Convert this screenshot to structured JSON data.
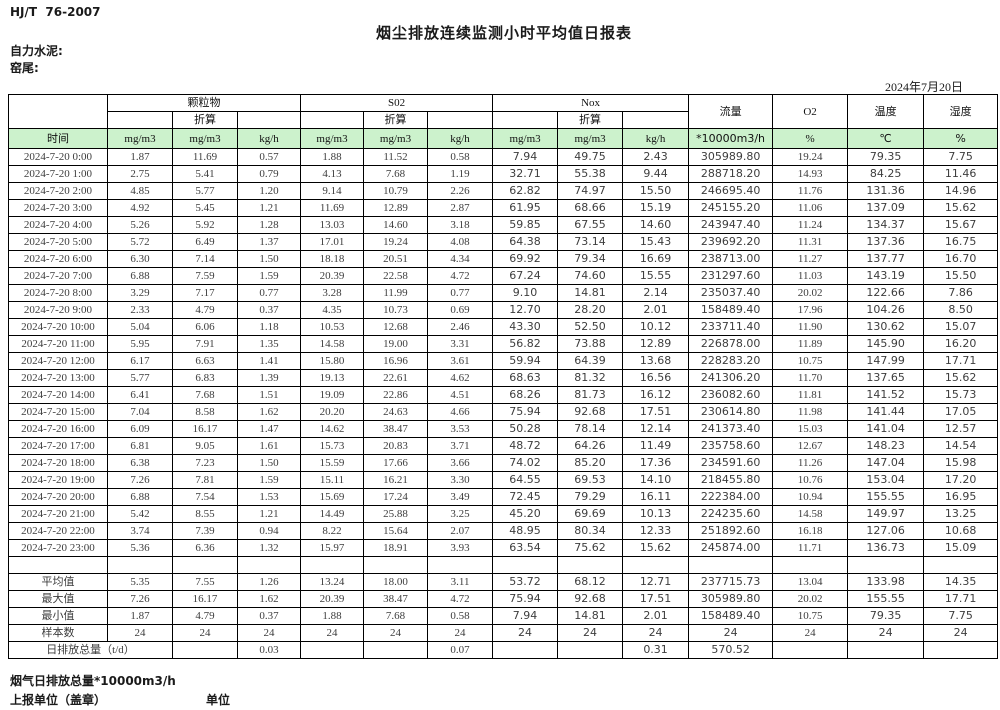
{
  "page": {
    "standard": "HJ/T  76-2007",
    "title": "烟尘排放连续监测小时平均值日报表",
    "company": "自力水泥:",
    "location": "窑尾:",
    "date": "2024年7月20日"
  },
  "colors": {
    "header_green": "#ccf2cc",
    "border": "#000000"
  },
  "table": {
    "group_labels": [
      "颗粒物",
      "S02",
      "Nox"
    ],
    "zhesuan": "折算",
    "side_labels": {
      "flow": "流量",
      "o2": "O2",
      "temp": "温度",
      "hum": "湿度"
    },
    "units": [
      "时间",
      "mg/m3",
      "mg/m3",
      "kg/h",
      "mg/m3",
      "mg/m3",
      "kg/h",
      "mg/m3",
      "mg/m3",
      "kg/h",
      "*10000m3/h",
      "%",
      "℃",
      "%"
    ],
    "rows": [
      [
        "2024-7-20 0:00",
        "1.87",
        "11.69",
        "0.57",
        "1.88",
        "11.52",
        "0.58",
        "7.94",
        "49.75",
        "2.43",
        "305989.80",
        "19.24",
        "79.35",
        "7.75"
      ],
      [
        "2024-7-20 1:00",
        "2.75",
        "5.41",
        "0.79",
        "4.13",
        "7.68",
        "1.19",
        "32.71",
        "55.38",
        "9.44",
        "288718.20",
        "14.93",
        "84.25",
        "11.46"
      ],
      [
        "2024-7-20 2:00",
        "4.85",
        "5.77",
        "1.20",
        "9.14",
        "10.79",
        "2.26",
        "62.82",
        "74.97",
        "15.50",
        "246695.40",
        "11.76",
        "131.36",
        "14.96"
      ],
      [
        "2024-7-20 3:00",
        "4.92",
        "5.45",
        "1.21",
        "11.69",
        "12.89",
        "2.87",
        "61.95",
        "68.66",
        "15.19",
        "245155.20",
        "11.06",
        "137.09",
        "15.62"
      ],
      [
        "2024-7-20 4:00",
        "5.26",
        "5.92",
        "1.28",
        "13.03",
        "14.60",
        "3.18",
        "59.85",
        "67.55",
        "14.60",
        "243947.40",
        "11.24",
        "134.37",
        "15.67"
      ],
      [
        "2024-7-20 5:00",
        "5.72",
        "6.49",
        "1.37",
        "17.01",
        "19.24",
        "4.08",
        "64.38",
        "73.14",
        "15.43",
        "239692.20",
        "11.31",
        "137.36",
        "16.75"
      ],
      [
        "2024-7-20 6:00",
        "6.30",
        "7.14",
        "1.50",
        "18.18",
        "20.51",
        "4.34",
        "69.92",
        "79.34",
        "16.69",
        "238713.00",
        "11.27",
        "137.77",
        "16.70"
      ],
      [
        "2024-7-20 7:00",
        "6.88",
        "7.59",
        "1.59",
        "20.39",
        "22.58",
        "4.72",
        "67.24",
        "74.60",
        "15.55",
        "231297.60",
        "11.03",
        "143.19",
        "15.50"
      ],
      [
        "2024-7-20 8:00",
        "3.29",
        "7.17",
        "0.77",
        "3.28",
        "11.99",
        "0.77",
        "9.10",
        "14.81",
        "2.14",
        "235037.40",
        "20.02",
        "122.66",
        "7.86"
      ],
      [
        "2024-7-20 9:00",
        "2.33",
        "4.79",
        "0.37",
        "4.35",
        "10.73",
        "0.69",
        "12.70",
        "28.20",
        "2.01",
        "158489.40",
        "17.96",
        "104.26",
        "8.50"
      ],
      [
        "2024-7-20 10:00",
        "5.04",
        "6.06",
        "1.18",
        "10.53",
        "12.68",
        "2.46",
        "43.30",
        "52.50",
        "10.12",
        "233711.40",
        "11.90",
        "130.62",
        "15.07"
      ],
      [
        "2024-7-20 11:00",
        "5.95",
        "7.91",
        "1.35",
        "14.58",
        "19.00",
        "3.31",
        "56.82",
        "73.88",
        "12.89",
        "226878.00",
        "11.89",
        "145.90",
        "16.20"
      ],
      [
        "2024-7-20 12:00",
        "6.17",
        "6.63",
        "1.41",
        "15.80",
        "16.96",
        "3.61",
        "59.94",
        "64.39",
        "13.68",
        "228283.20",
        "10.75",
        "147.99",
        "17.71"
      ],
      [
        "2024-7-20 13:00",
        "5.77",
        "6.83",
        "1.39",
        "19.13",
        "22.61",
        "4.62",
        "68.63",
        "81.32",
        "16.56",
        "241306.20",
        "11.70",
        "137.65",
        "15.62"
      ],
      [
        "2024-7-20 14:00",
        "6.41",
        "7.68",
        "1.51",
        "19.09",
        "22.86",
        "4.51",
        "68.26",
        "81.73",
        "16.12",
        "236082.60",
        "11.81",
        "141.52",
        "15.73"
      ],
      [
        "2024-7-20 15:00",
        "7.04",
        "8.58",
        "1.62",
        "20.20",
        "24.63",
        "4.66",
        "75.94",
        "92.68",
        "17.51",
        "230614.80",
        "11.98",
        "141.44",
        "17.05"
      ],
      [
        "2024-7-20 16:00",
        "6.09",
        "16.17",
        "1.47",
        "14.62",
        "38.47",
        "3.53",
        "50.28",
        "78.14",
        "12.14",
        "241373.40",
        "15.03",
        "141.04",
        "12.57"
      ],
      [
        "2024-7-20 17:00",
        "6.81",
        "9.05",
        "1.61",
        "15.73",
        "20.83",
        "3.71",
        "48.72",
        "64.26",
        "11.49",
        "235758.60",
        "12.67",
        "148.23",
        "14.54"
      ],
      [
        "2024-7-20 18:00",
        "6.38",
        "7.23",
        "1.50",
        "15.59",
        "17.66",
        "3.66",
        "74.02",
        "85.20",
        "17.36",
        "234591.60",
        "11.26",
        "147.04",
        "15.98"
      ],
      [
        "2024-7-20 19:00",
        "7.26",
        "7.81",
        "1.59",
        "15.11",
        "16.21",
        "3.30",
        "64.55",
        "69.53",
        "14.10",
        "218455.80",
        "10.76",
        "153.04",
        "17.20"
      ],
      [
        "2024-7-20 20:00",
        "6.88",
        "7.54",
        "1.53",
        "15.69",
        "17.24",
        "3.49",
        "72.45",
        "79.29",
        "16.11",
        "222384.00",
        "10.94",
        "155.55",
        "16.95"
      ],
      [
        "2024-7-20 21:00",
        "5.42",
        "8.55",
        "1.21",
        "14.49",
        "25.88",
        "3.25",
        "45.20",
        "69.69",
        "10.13",
        "224235.60",
        "14.58",
        "149.97",
        "13.25"
      ],
      [
        "2024-7-20 22:00",
        "3.74",
        "7.39",
        "0.94",
        "8.22",
        "15.64",
        "2.07",
        "48.95",
        "80.34",
        "12.33",
        "251892.60",
        "16.18",
        "127.06",
        "10.68"
      ],
      [
        "2024-7-20 23:00",
        "5.36",
        "6.36",
        "1.32",
        "15.97",
        "18.91",
        "3.93",
        "63.54",
        "75.62",
        "15.62",
        "245874.00",
        "11.71",
        "136.73",
        "15.09"
      ]
    ],
    "summary": [
      {
        "label": "平均值",
        "values": [
          "5.35",
          "7.55",
          "1.26",
          "13.24",
          "18.00",
          "3.11",
          "53.72",
          "68.12",
          "12.71",
          "237715.73",
          "13.04",
          "133.98",
          "14.35"
        ]
      },
      {
        "label": "最大值",
        "values": [
          "7.26",
          "16.17",
          "1.62",
          "20.39",
          "38.47",
          "4.72",
          "75.94",
          "92.68",
          "17.51",
          "305989.80",
          "20.02",
          "155.55",
          "17.71"
        ]
      },
      {
        "label": "最小值",
        "values": [
          "1.87",
          "4.79",
          "0.37",
          "1.88",
          "7.68",
          "0.58",
          "7.94",
          "14.81",
          "2.01",
          "158489.40",
          "10.75",
          "79.35",
          "7.75"
        ]
      },
      {
        "label": "样本数",
        "values": [
          "24",
          "24",
          "24",
          "24",
          "24",
          "24",
          "24",
          "24",
          "24",
          "24",
          "24",
          "24",
          "24"
        ]
      }
    ],
    "total": {
      "label": "日排放总量（t/d）",
      "values": [
        "",
        "0.03",
        "",
        "",
        "0.07",
        "",
        "",
        "0.31",
        "570.52",
        "",
        "",
        ""
      ]
    }
  },
  "footer": {
    "line1": "烟气日排放总量*10000m3/h",
    "line2": "上报单位（盖章）",
    "unit": "单位"
  }
}
